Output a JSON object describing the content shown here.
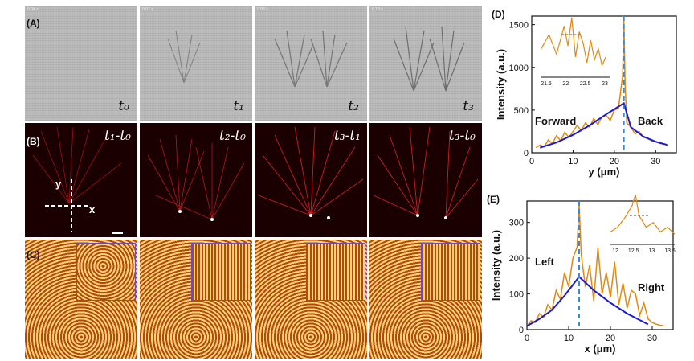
{
  "panel_labels": {
    "A": "(A)",
    "B": "(B)",
    "C": "(C)",
    "D": "(D)",
    "E": "(E)"
  },
  "row_a": {
    "timestamps": [
      "0.04 s",
      "0.07 s",
      "0.09 s",
      "0.13 s"
    ],
    "t_labels": [
      "t₀",
      "t₁",
      "t₂",
      "t₃"
    ]
  },
  "row_b": {
    "diff_labels": [
      "t₁-t₀",
      "t₂-t₀",
      "t₃-t₁",
      "t₃-t₀"
    ],
    "axis_x": "x",
    "axis_y": "y"
  },
  "colors": {
    "orange": "#e08a10",
    "blue": "#1a1ad6",
    "dash": "#3a8ad6"
  },
  "chart_data": [
    {
      "type": "line",
      "panel": "(D)",
      "xlabel": "y (μm)",
      "ylabel": "Intensity (a.u.)",
      "xlim": [
        0,
        35
      ],
      "ylim": [
        0,
        1600
      ],
      "xticks": [
        0,
        10,
        20,
        30
      ],
      "yticks": [
        0,
        500,
        1000,
        1500
      ],
      "annotations": [
        "Forward",
        "Back"
      ],
      "peak_x": 22.3,
      "fit": {
        "x": [
          2,
          6,
          10,
          14,
          18,
          22.3,
          24,
          27,
          30,
          33
        ],
        "y": [
          60,
          120,
          210,
          320,
          450,
          580,
          300,
          190,
          130,
          90
        ]
      },
      "data": {
        "x": [
          1,
          2,
          3,
          4,
          5,
          6,
          7,
          8,
          9,
          10,
          11,
          12,
          13,
          14,
          15,
          16,
          17,
          18,
          19,
          20,
          21,
          22,
          22.3,
          22.6,
          23,
          24,
          25,
          26,
          27,
          28,
          29,
          30,
          31,
          32,
          33
        ],
        "y": [
          60,
          90,
          70,
          150,
          110,
          200,
          140,
          240,
          180,
          250,
          320,
          260,
          350,
          300,
          400,
          330,
          420,
          440,
          380,
          500,
          520,
          900,
          1550,
          800,
          350,
          300,
          220,
          250,
          180,
          170,
          140,
          130,
          110,
          100,
          90
        ]
      },
      "inset": {
        "xticks": [
          "21.5",
          "22",
          "22.5",
          "23"
        ],
        "xlim": [
          21.3,
          23.1
        ],
        "x": [
          21.3,
          21.5,
          21.7,
          21.9,
          22.0,
          22.1,
          22.2,
          22.3,
          22.4,
          22.5,
          22.6,
          22.7,
          22.8,
          22.9,
          23.0
        ],
        "y": [
          0.45,
          0.7,
          0.35,
          0.85,
          0.5,
          1.0,
          0.3,
          0.75,
          0.55,
          0.2,
          0.6,
          0.25,
          0.45,
          0.15,
          0.3
        ],
        "halfmax": 0.7
      }
    },
    {
      "type": "line",
      "panel": "(E)",
      "xlabel": "x (μm)",
      "ylabel": "Intensity (a.u.)",
      "xlim": [
        0,
        35
      ],
      "ylim": [
        0,
        360
      ],
      "xticks": [
        0,
        10,
        20,
        30
      ],
      "yticks": [
        0,
        100,
        200,
        300
      ],
      "annotations": [
        "Left",
        "Right"
      ],
      "peak_x": 12.5,
      "fit": {
        "x": [
          0,
          3,
          6,
          9,
          12.5,
          16,
          20,
          24,
          29
        ],
        "y": [
          10,
          30,
          55,
          95,
          148,
          110,
          75,
          45,
          15
        ]
      },
      "data": {
        "x": [
          0,
          1,
          2,
          3,
          4,
          5,
          6,
          7,
          8,
          9,
          10,
          11,
          12,
          12.5,
          13,
          14,
          15,
          16,
          17,
          18,
          19,
          20,
          21,
          22,
          23,
          24,
          25,
          26,
          27,
          28,
          29,
          30,
          31,
          32,
          33
        ],
        "y": [
          10,
          25,
          20,
          45,
          35,
          70,
          55,
          110,
          85,
          160,
          120,
          200,
          230,
          350,
          210,
          120,
          180,
          80,
          230,
          100,
          160,
          90,
          190,
          70,
          130,
          60,
          110,
          100,
          40,
          75,
          30,
          20,
          15,
          12,
          10
        ]
      },
      "inset": {
        "xticks": [
          "12",
          "12.5",
          "13",
          "13.5"
        ],
        "xlim": [
          11.9,
          13.7
        ],
        "x": [
          11.9,
          12.1,
          12.3,
          12.5,
          12.6,
          12.7,
          12.9,
          13.1,
          13.3,
          13.5,
          13.7
        ],
        "y": [
          0.2,
          0.3,
          0.5,
          0.75,
          1.0,
          0.55,
          0.3,
          0.4,
          0.2,
          0.3,
          0.15
        ],
        "halfmax": 0.55
      }
    }
  ]
}
